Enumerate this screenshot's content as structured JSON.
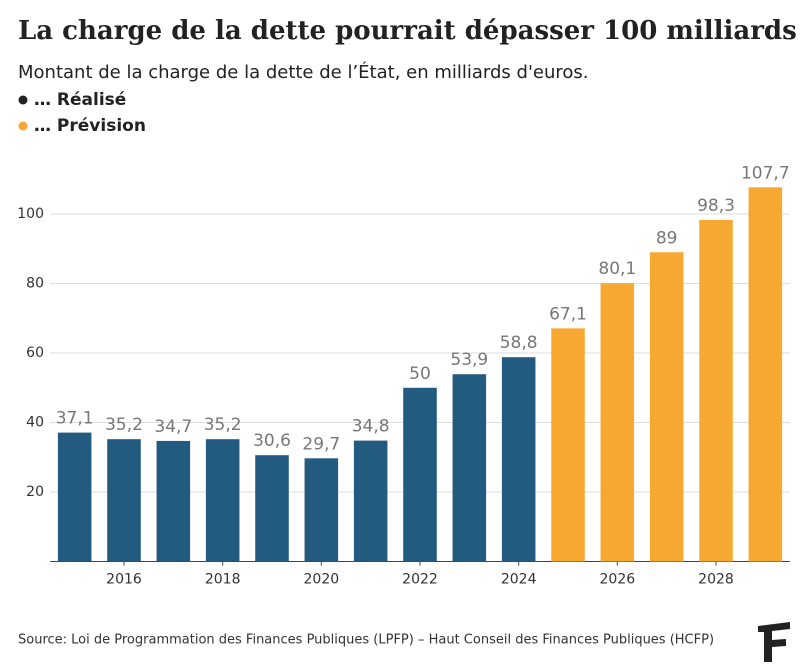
{
  "chart_data": {
    "type": "bar",
    "title": "La charge de la dette pourrait dépasser 100 milliards",
    "subtitle": "Montant de la charge de la dette de l’État, en milliards d'euros.",
    "source": "Source: Loi de Programmation des Finances Publiques (LPFP) – Haut Conseil des Finances Publiques (HCFP)",
    "x": [
      2015,
      2016,
      2017,
      2018,
      2019,
      2020,
      2021,
      2022,
      2023,
      2024,
      2025,
      2026,
      2027,
      2028,
      2029
    ],
    "xlim": [
      2014.5,
      2029.5
    ],
    "xticks": [
      2016,
      2018,
      2020,
      2022,
      2024,
      2026,
      2028
    ],
    "ylim": [
      0,
      110
    ],
    "yticks": [
      20,
      40,
      60,
      80,
      100
    ],
    "grid": true,
    "series": [
      {
        "name": "… Réalisé",
        "color": "#235a7f",
        "values": [
          37.1,
          35.2,
          34.7,
          35.2,
          30.6,
          29.7,
          34.8,
          50,
          53.9,
          58.8,
          null,
          null,
          null,
          null,
          null
        ],
        "value_labels": [
          "37,1",
          "35,2",
          "34,7",
          "35,2",
          "30,6",
          "29,7",
          "34,8",
          "50",
          "53,9",
          "58,8",
          null,
          null,
          null,
          null,
          null
        ]
      },
      {
        "name": "… Prévision",
        "color": "#f7a830",
        "values": [
          null,
          null,
          null,
          null,
          null,
          null,
          null,
          null,
          null,
          null,
          67.1,
          80.1,
          89,
          98.3,
          107.7
        ],
        "value_labels": [
          null,
          null,
          null,
          null,
          null,
          null,
          null,
          null,
          null,
          null,
          "67,1",
          "80,1",
          "89",
          "98,3",
          "107,7"
        ]
      }
    ]
  }
}
